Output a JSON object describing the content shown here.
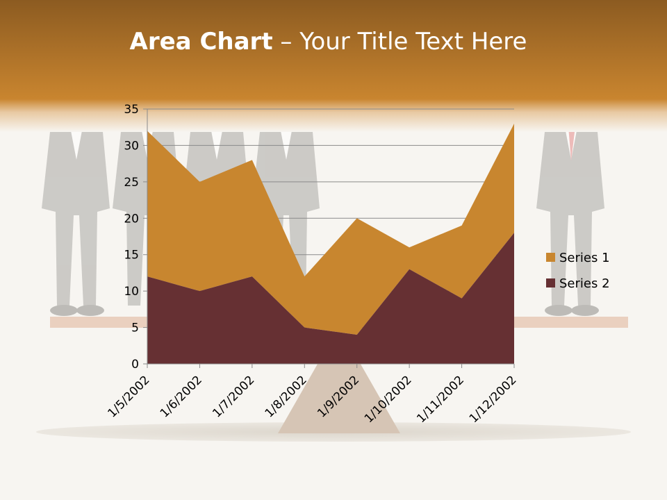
{
  "slide": {
    "title_bold": "Area Chart",
    "title_rest": " – Your Title Text Here"
  },
  "colors": {
    "banner": "#c9852f",
    "banner_dark": "#8a5a20",
    "series1": "#c8862f",
    "series2": "#663033",
    "background": "#f7f5f1"
  },
  "chart_data": {
    "type": "area",
    "stacked": true,
    "categories": [
      "1/5/2002",
      "1/6/2002",
      "1/7/2002",
      "1/8/2002",
      "1/9/2002",
      "1/10/2002",
      "1/11/2002",
      "1/12/2002"
    ],
    "series": [
      {
        "name": "Series 1",
        "values": [
          20,
          15,
          16,
          7,
          16,
          3,
          10,
          15
        ]
      },
      {
        "name": "Series 2",
        "values": [
          12,
          10,
          12,
          5,
          4,
          13,
          9,
          18
        ]
      }
    ],
    "ylim": [
      0,
      35
    ],
    "yticks": [
      0,
      5,
      10,
      15,
      20,
      25,
      30,
      35
    ],
    "grid": true,
    "legend": "right",
    "title": "",
    "xlabel": "",
    "ylabel": ""
  }
}
